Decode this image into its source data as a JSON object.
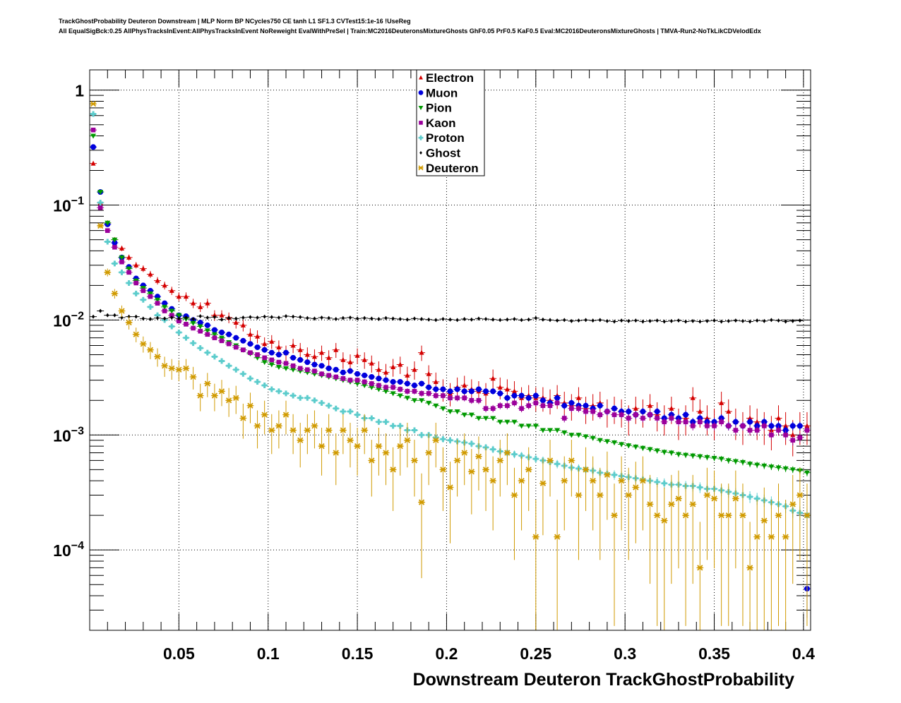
{
  "title": {
    "line1": "TrackGhostProbability Deuteron Downstream | MLP Norm BP NCycles750 CE tanh L1 SF1.3 CVTest15:1e-16 !UseReg",
    "line2": "All EqualSigBck:0.25 AllPhysTracksInEvent:AllPhysTracksInEvent NoReweight EvalWithPreSel | Train:MC2016DeuteronsMixtureGhosts GhF0.05 PrF0.5 KaF0.5 Eval:MC2016DeuteronsMixtureGhosts | TMVA-Run2-NoTkLikCDVelodEdx"
  },
  "chart_data": {
    "type": "scatter",
    "title": "TrackGhostProbability Deuteron Downstream",
    "xlabel": "Downstream Deuteron TrackGhostProbability",
    "ylabel": "",
    "xlim": [
      0,
      0.404
    ],
    "ylim": [
      2e-05,
      1.5
    ],
    "yscale": "log",
    "grid": true,
    "legend_position": "top-center",
    "x_start": 0,
    "bin_width": 0.004,
    "x_ticks": [
      {
        "value": 0.05,
        "label": "0.05"
      },
      {
        "value": 0.1,
        "label": "0.1"
      },
      {
        "value": 0.15,
        "label": "0.15"
      },
      {
        "value": 0.2,
        "label": "0.2"
      },
      {
        "value": 0.25,
        "label": "0.25"
      },
      {
        "value": 0.3,
        "label": "0.3"
      },
      {
        "value": 0.35,
        "label": "0.35"
      },
      {
        "value": 0.4,
        "label": "0.4"
      }
    ],
    "y_ticks": [
      {
        "value": 1,
        "base": "1",
        "exp": ""
      },
      {
        "value": 0.1,
        "base": "10",
        "exp": "−1"
      },
      {
        "value": 0.01,
        "base": "10",
        "exp": "−2"
      },
      {
        "value": 0.001,
        "base": "10",
        "exp": "−3"
      },
      {
        "value": 0.0001,
        "base": "10",
        "exp": "−4"
      }
    ],
    "series": [
      {
        "name": "Electron",
        "color": "#d40000",
        "marker": "triangle-up",
        "err_scale": 0.011,
        "values": [
          0.23,
          0.105,
          0.07,
          0.05,
          0.042,
          0.035,
          0.03,
          0.028,
          0.025,
          0.022,
          0.02,
          0.018,
          0.016,
          0.016,
          0.014,
          0.013,
          0.014,
          0.011,
          0.011,
          0.0105,
          0.0095,
          0.009,
          0.0075,
          0.0072,
          0.0062,
          0.0065,
          0.0058,
          0.0052,
          0.006,
          0.0055,
          0.005,
          0.0048,
          0.0052,
          0.0047,
          0.0055,
          0.0045,
          0.0043,
          0.0049,
          0.0045,
          0.0042,
          0.0037,
          0.0035,
          0.0039,
          0.0041,
          0.0033,
          0.0037,
          0.0052,
          0.0034,
          0.0029,
          0.0025,
          0.0023,
          0.0026,
          0.0027,
          0.0025,
          0.0024,
          0.0023,
          0.0031,
          0.0026,
          0.0025,
          0.0024,
          0.0021,
          0.0022,
          0.0021,
          0.0021,
          0.002,
          0.0022,
          0.0019,
          0.0018,
          0.0021,
          0.0017,
          0.0018,
          0.0019,
          0.0016,
          0.0017,
          0.0016,
          0.0014,
          0.0017,
          0.0016,
          0.0018,
          0.0015,
          0.0014,
          0.0017,
          0.0013,
          0.0014,
          0.0021,
          0.0016,
          0.0014,
          0.0013,
          0.0019,
          0.0016,
          0.0013,
          0.0012,
          0.0014,
          0.0013,
          0.0012,
          0.0011,
          0.0014,
          0.0012,
          0.001,
          0.0012,
          0.0012
        ]
      },
      {
        "name": "Muon",
        "color": "#0000dd",
        "marker": "circle",
        "err_scale": 0.003,
        "values": [
          0.32,
          0.13,
          0.068,
          0.047,
          0.035,
          0.029,
          0.023,
          0.02,
          0.018,
          0.016,
          0.014,
          0.0125,
          0.011,
          0.0108,
          0.01,
          0.0095,
          0.009,
          0.0082,
          0.0078,
          0.0075,
          0.007,
          0.0066,
          0.0062,
          0.0058,
          0.0055,
          0.0052,
          0.005,
          0.0052,
          0.0047,
          0.0045,
          0.0043,
          0.0041,
          0.004,
          0.0038,
          0.0037,
          0.0035,
          0.0036,
          0.0034,
          0.0033,
          0.0032,
          0.0031,
          0.003,
          0.0029,
          0.0029,
          0.0028,
          0.0027,
          0.0028,
          0.0026,
          0.0025,
          0.0025,
          0.0024,
          0.0025,
          0.0024,
          0.0024,
          0.0025,
          0.0024,
          0.0024,
          0.0023,
          0.0021,
          0.0022,
          0.0022,
          0.0021,
          0.0022,
          0.002,
          0.0019,
          0.0021,
          0.0018,
          0.0019,
          0.0018,
          0.0018,
          0.0017,
          0.0018,
          0.0016,
          0.0017,
          0.0016,
          0.0016,
          0.0015,
          0.0016,
          0.0015,
          0.0016,
          0.0014,
          0.0015,
          0.0014,
          0.0015,
          0.0013,
          0.0014,
          0.0013,
          0.0013,
          0.0014,
          0.0012,
          0.0013,
          0.0012,
          0.0013,
          0.0012,
          0.0013,
          0.0012,
          0.0012,
          0.0011,
          0.0012,
          0.0012,
          4.6e-05
        ]
      },
      {
        "name": "Pion",
        "color": "#009900",
        "marker": "triangle-down",
        "err_scale": 0.0015,
        "values": [
          0.4,
          0.13,
          0.07,
          0.05,
          0.035,
          0.028,
          0.022,
          0.019,
          0.017,
          0.015,
          0.013,
          0.012,
          0.011,
          0.0102,
          0.0094,
          0.0088,
          0.0081,
          0.0075,
          0.007,
          0.0064,
          0.006,
          0.0055,
          0.0051,
          0.0047,
          0.0043,
          0.0041,
          0.0039,
          0.0038,
          0.0037,
          0.0036,
          0.0035,
          0.0034,
          0.0033,
          0.0032,
          0.0031,
          0.003,
          0.0029,
          0.0028,
          0.0027,
          0.0026,
          0.0025,
          0.0024,
          0.0023,
          0.0022,
          0.0021,
          0.002,
          0.002,
          0.0019,
          0.0018,
          0.0017,
          0.0016,
          0.0016,
          0.0015,
          0.0015,
          0.0014,
          0.0014,
          0.0014,
          0.0013,
          0.0013,
          0.0013,
          0.0012,
          0.0012,
          0.0012,
          0.0011,
          0.0011,
          0.0011,
          0.00105,
          0.001,
          0.001,
          0.00097,
          0.00094,
          0.0009,
          0.00088,
          0.00086,
          0.00083,
          0.00081,
          0.00079,
          0.00077,
          0.00075,
          0.00073,
          0.00071,
          0.0007,
          0.00068,
          0.00067,
          0.00066,
          0.00065,
          0.00064,
          0.00063,
          0.00062,
          0.0006,
          0.00059,
          0.00058,
          0.00056,
          0.00055,
          0.00054,
          0.00053,
          0.00052,
          0.00051,
          0.0005,
          0.00049,
          0.00047
        ]
      },
      {
        "name": "Kaon",
        "color": "#9b009b",
        "marker": "square",
        "err_scale": 0.003,
        "values": [
          0.45,
          0.095,
          0.06,
          0.043,
          0.032,
          0.026,
          0.021,
          0.018,
          0.016,
          0.014,
          0.012,
          0.011,
          0.0098,
          0.0092,
          0.0085,
          0.008,
          0.0075,
          0.007,
          0.0066,
          0.0062,
          0.0058,
          0.0055,
          0.0052,
          0.005,
          0.0047,
          0.0045,
          0.0043,
          0.0042,
          0.004,
          0.0038,
          0.0037,
          0.0036,
          0.0034,
          0.0033,
          0.0032,
          0.0031,
          0.003,
          0.003,
          0.0029,
          0.0028,
          0.0027,
          0.0026,
          0.0026,
          0.0025,
          0.0024,
          0.0024,
          0.0023,
          0.0023,
          0.0022,
          0.0022,
          0.0021,
          0.0021,
          0.0021,
          0.002,
          0.002,
          0.0017,
          0.0017,
          0.0018,
          0.0018,
          0.0019,
          0.0017,
          0.0018,
          0.0019,
          0.0018,
          0.0018,
          0.0019,
          0.0014,
          0.0017,
          0.0017,
          0.0016,
          0.0016,
          0.0015,
          0.0016,
          0.0015,
          0.0015,
          0.0014,
          0.0015,
          0.0014,
          0.0015,
          0.0014,
          0.0013,
          0.0014,
          0.0013,
          0.0013,
          0.0012,
          0.0013,
          0.0012,
          0.0012,
          0.0013,
          0.0012,
          0.0011,
          0.0012,
          0.0011,
          0.0011,
          0.0012,
          0.001,
          0.0011,
          0.001,
          0.0009,
          0.00095,
          0.0011
        ]
      },
      {
        "name": "Proton",
        "color": "#5ccccc",
        "marker": "cross",
        "err_scale": 0.002,
        "values": [
          0.62,
          0.105,
          0.048,
          0.031,
          0.026,
          0.021,
          0.017,
          0.015,
          0.013,
          0.011,
          0.01,
          0.0088,
          0.0078,
          0.007,
          0.0063,
          0.0057,
          0.0052,
          0.0048,
          0.0044,
          0.004,
          0.0037,
          0.0034,
          0.0031,
          0.0029,
          0.0027,
          0.0025,
          0.0024,
          0.0023,
          0.0022,
          0.0021,
          0.0021,
          0.002,
          0.0019,
          0.0018,
          0.0017,
          0.0016,
          0.0016,
          0.0015,
          0.0014,
          0.0014,
          0.0013,
          0.0013,
          0.0012,
          0.0012,
          0.0011,
          0.0011,
          0.001,
          0.001,
          0.00095,
          0.00092,
          0.0009,
          0.00088,
          0.00086,
          0.00084,
          0.0008,
          0.00078,
          0.00075,
          0.00072,
          0.0007,
          0.00068,
          0.00066,
          0.00064,
          0.00062,
          0.0006,
          0.00058,
          0.00056,
          0.00054,
          0.00052,
          0.00051,
          0.0005,
          0.00049,
          0.00047,
          0.00046,
          0.00045,
          0.00044,
          0.00043,
          0.00042,
          0.00041,
          0.0004,
          0.00039,
          0.00038,
          0.00037,
          0.00037,
          0.00036,
          0.00036,
          0.00035,
          0.00034,
          0.00034,
          0.00033,
          0.00032,
          0.00031,
          0.0003,
          0.00029,
          0.00028,
          0.00027,
          0.00026,
          0.00025,
          0.00024,
          0.00022,
          0.00021,
          0.0002
        ]
      },
      {
        "name": "Ghost",
        "color": "#000000",
        "marker": "diamond",
        "err_scale": 0.0005,
        "values": [
          0.0107,
          0.012,
          0.011,
          0.011,
          0.0105,
          0.0107,
          0.0107,
          0.0103,
          0.0102,
          0.0104,
          0.0103,
          0.0105,
          0.0103,
          0.0105,
          0.0102,
          0.0108,
          0.0105,
          0.0106,
          0.0101,
          0.0104,
          0.0103,
          0.0105,
          0.0106,
          0.0105,
          0.0107,
          0.0106,
          0.0105,
          0.0108,
          0.0107,
          0.0106,
          0.0104,
          0.0103,
          0.0105,
          0.0104,
          0.0102,
          0.0104,
          0.0105,
          0.0103,
          0.0104,
          0.0103,
          0.0102,
          0.0104,
          0.0103,
          0.0102,
          0.0101,
          0.0103,
          0.0102,
          0.0101,
          0.01,
          0.0102,
          0.0101,
          0.01,
          0.0102,
          0.0101,
          0.0103,
          0.0102,
          0.0101,
          0.01,
          0.0101,
          0.0102,
          0.01,
          0.0101,
          0.0104,
          0.0101,
          0.01,
          0.0099,
          0.01,
          0.0098,
          0.0099,
          0.01,
          0.0099,
          0.01,
          0.0098,
          0.0097,
          0.0099,
          0.0098,
          0.0099,
          0.0097,
          0.0098,
          0.0099,
          0.0097,
          0.0098,
          0.0099,
          0.0097,
          0.0098,
          0.0097,
          0.0098,
          0.0099,
          0.0097,
          0.0098,
          0.0099,
          0.0098,
          0.0097,
          0.0099,
          0.0098,
          0.01,
          0.0099,
          0.0097,
          0.0098,
          0.0099,
          0.0002
        ]
      },
      {
        "name": "Deuteron",
        "color": "#d09a00",
        "marker": "star",
        "err_scale": 0.0126,
        "values": [
          0.76,
          0.066,
          0.026,
          0.017,
          0.012,
          0.0095,
          0.0075,
          0.0062,
          0.0055,
          0.0048,
          0.004,
          0.0038,
          0.0037,
          0.0038,
          0.0032,
          0.0022,
          0.0028,
          0.0022,
          0.0024,
          0.002,
          0.0021,
          0.0014,
          0.0018,
          0.0012,
          0.0015,
          0.0011,
          0.0012,
          0.0015,
          0.0011,
          0.0009,
          0.0011,
          0.0012,
          0.0008,
          0.0011,
          0.0007,
          0.0011,
          0.0009,
          0.0008,
          0.0011,
          0.0006,
          0.0008,
          0.0007,
          0.0005,
          0.0008,
          0.0009,
          0.0006,
          0.00026,
          0.0007,
          0.0009,
          0.0005,
          0.00035,
          0.0006,
          0.0007,
          0.00048,
          0.00065,
          0.0005,
          0.0004,
          0.0006,
          0.0007,
          0.0003,
          0.0004,
          0.0005,
          0.00013,
          0.00038,
          0.0006,
          0.00013,
          0.0004,
          0.0006,
          0.0003,
          0.0005,
          0.0004,
          0.0003,
          0.00045,
          0.0002,
          0.0004,
          0.0003,
          0.00035,
          0.0004,
          0.00025,
          0.0002,
          0.00018,
          0.00025,
          0.00028,
          0.0002,
          0.00025,
          7e-05,
          0.0003,
          0.00028,
          0.0002,
          0.0002,
          0.00028,
          0.0002,
          7e-05,
          0.00013,
          0.00018,
          0.00013,
          0.0002,
          0.00013,
          0.00025,
          0.0003,
          0.0002
        ]
      }
    ]
  }
}
